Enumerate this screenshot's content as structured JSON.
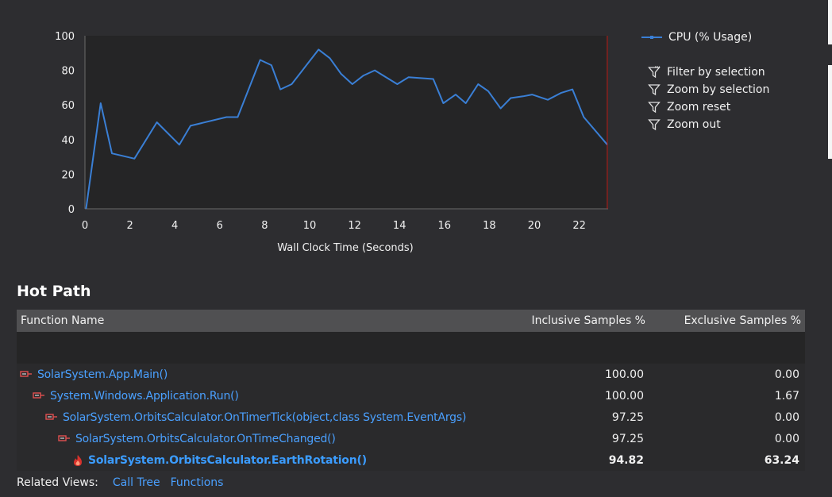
{
  "chart_data": {
    "type": "line",
    "xlabel": "Wall Clock Time (Seconds)",
    "ylabel": "",
    "xlim": [
      0,
      23.3
    ],
    "ylim": [
      0,
      100
    ],
    "x_ticks": [
      0,
      2,
      4,
      6,
      8,
      10,
      12,
      14,
      16,
      18,
      20,
      22
    ],
    "y_ticks": [
      0,
      20,
      40,
      60,
      80,
      100
    ],
    "grid": false,
    "legend_position": "right",
    "series": [
      {
        "name": "CPU (% Usage)",
        "color": "#3a7fd5",
        "x": [
          0.05,
          0.7,
          1.2,
          2.2,
          3.2,
          4.2,
          4.7,
          6.3,
          6.8,
          7.8,
          8.3,
          8.7,
          9.2,
          10.4,
          10.9,
          11.4,
          11.9,
          12.4,
          12.9,
          13.9,
          14.4,
          15.5,
          15.95,
          16.5,
          16.95,
          17.5,
          17.95,
          18.5,
          18.95,
          19.5,
          19.9,
          20.6,
          21.2,
          21.7,
          22.2,
          23.25
        ],
        "y": [
          0,
          61,
          32,
          29,
          50,
          37,
          48,
          53,
          53,
          86,
          83,
          69,
          72,
          92,
          87,
          78,
          72,
          77,
          80,
          72,
          76,
          75,
          61,
          66,
          61,
          72,
          68,
          58,
          64,
          65,
          66,
          63,
          67,
          69,
          53,
          37
        ]
      }
    ],
    "marker_line_x": 23.25,
    "marker_line_color": "#c0201c"
  },
  "legend": {
    "series_label": "CPU (% Usage)"
  },
  "chart_actions": [
    {
      "label": "Filter by selection",
      "icon": "filter-selection-icon"
    },
    {
      "label": "Zoom by selection",
      "icon": "funnel-icon"
    },
    {
      "label": "Zoom reset",
      "icon": "funnel-icon"
    },
    {
      "label": "Zoom out",
      "icon": "funnel-icon"
    }
  ],
  "hot_path": {
    "title": "Hot Path",
    "columns": [
      "Function Name",
      "Inclusive Samples %",
      "Exclusive Samples %"
    ],
    "rows": [
      {
        "name": "SolarSystem.App.Main()",
        "inclusive": "100.00",
        "exclusive": "0.00",
        "icon": "hot-path-icon"
      },
      {
        "name": "System.Windows.Application.Run()",
        "inclusive": "100.00",
        "exclusive": "1.67",
        "icon": "hot-path-icon"
      },
      {
        "name": "SolarSystem.OrbitsCalculator.OnTimerTick(object,class System.EventArgs)",
        "inclusive": "97.25",
        "exclusive": "0.00",
        "icon": "hot-path-icon"
      },
      {
        "name": "SolarSystem.OrbitsCalculator.OnTimeChanged()",
        "inclusive": "97.25",
        "exclusive": "0.00",
        "icon": "hot-path-icon"
      },
      {
        "name": "SolarSystem.OrbitsCalculator.EarthRotation()",
        "inclusive": "94.82",
        "exclusive": "63.24",
        "icon": "flame-icon"
      }
    ]
  },
  "related_views": {
    "label": "Related Views:",
    "links": [
      "Call Tree",
      "Functions"
    ]
  }
}
